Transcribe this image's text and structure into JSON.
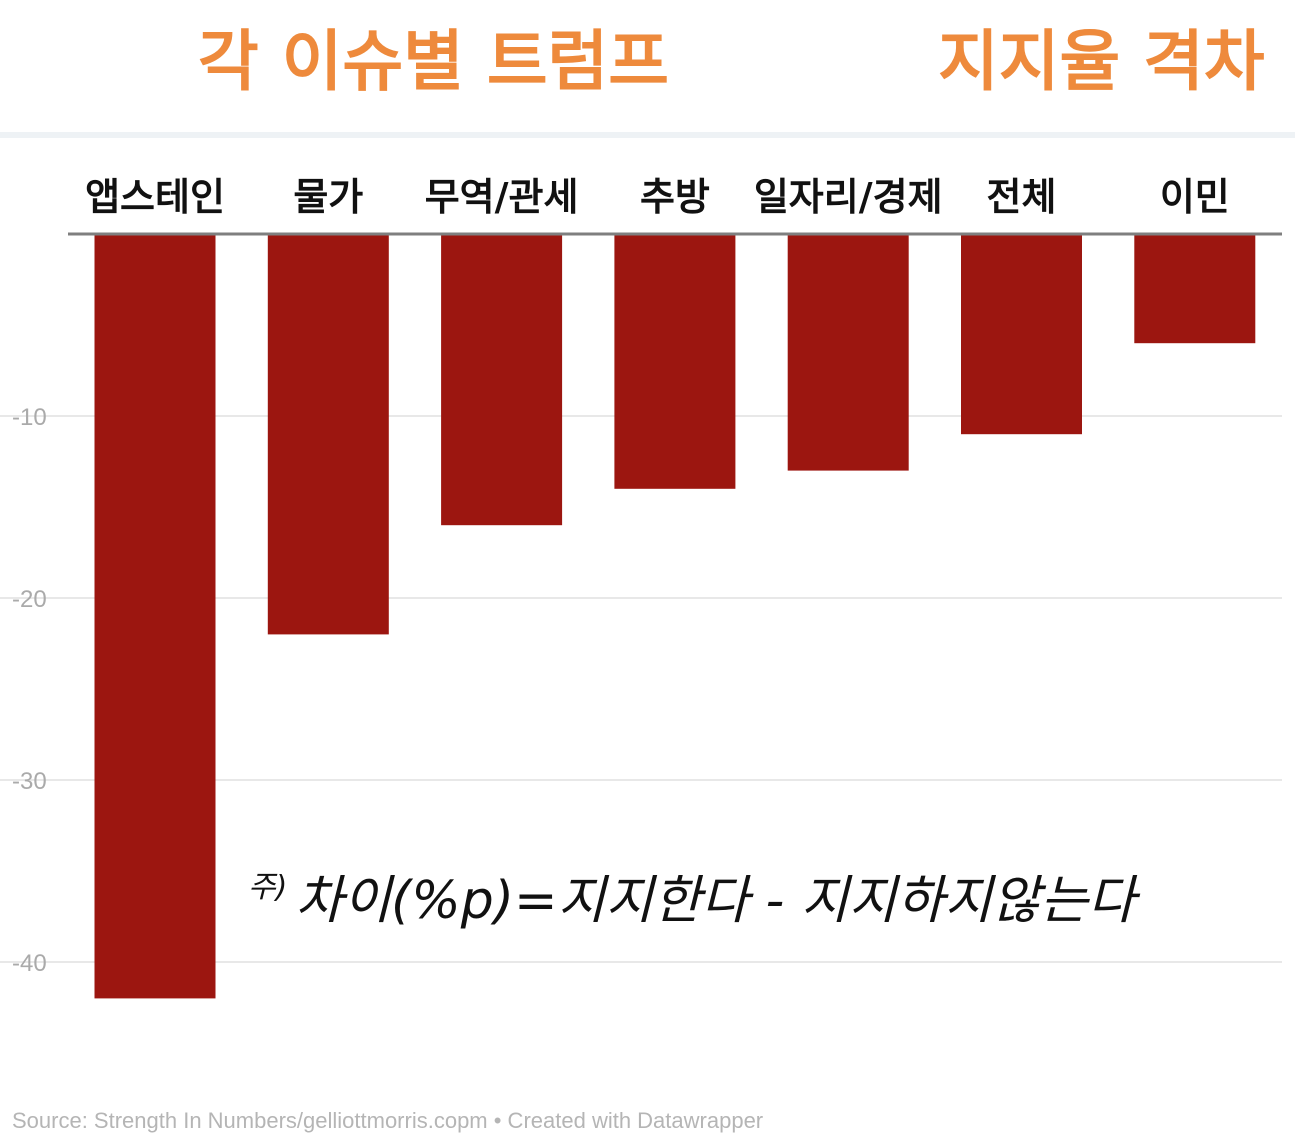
{
  "colors": {
    "title": "#ee8a3c",
    "bar": "#9c1610",
    "baseline": "#7f7f7f",
    "grid": "#e8e8e8",
    "tick_label": "#aaaaaa",
    "category_label": "#111111"
  },
  "title": {
    "left": "각 이슈별 트럼프",
    "right": "지지율 격차"
  },
  "note": {
    "mark": "주)",
    "text": "차이(%p)=지지한다 - 지지하지않는다"
  },
  "source": "Source: Strength In Numbers/gelliottmorris.copm • Created with Datawrapper",
  "chart_data": {
    "type": "bar",
    "title": "각 이슈별 트럼프 지지율 격차",
    "categories": [
      "앱스테인",
      "물가",
      "무역/관세",
      "추방",
      "일자리/경제",
      "전체",
      "이민"
    ],
    "values": [
      -42,
      -22,
      -16,
      -14,
      -13,
      -11,
      -6
    ],
    "yticks": [
      -10,
      -20,
      -30,
      -40
    ],
    "ylim": [
      -42,
      0
    ],
    "xlabel": "",
    "ylabel": "",
    "grid": true,
    "unit": "%p"
  }
}
